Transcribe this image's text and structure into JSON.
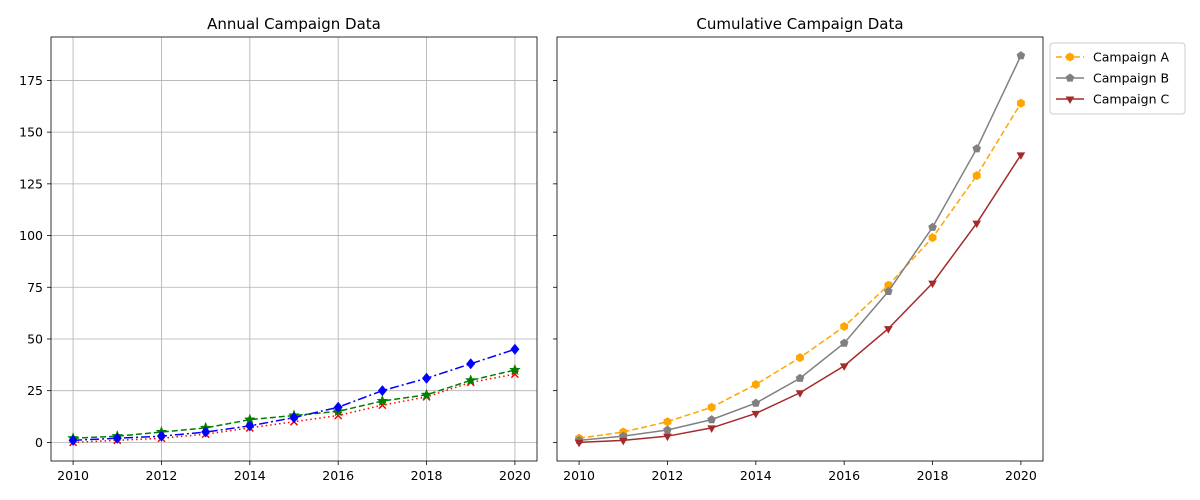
{
  "chart_data": [
    {
      "type": "line",
      "title": "Annual Campaign Data",
      "xlabel": "",
      "ylabel": "",
      "x": [
        2010,
        2011,
        2012,
        2013,
        2014,
        2015,
        2016,
        2017,
        2018,
        2019,
        2020
      ],
      "xlim": [
        2009.5,
        2020.5
      ],
      "ylim": [
        -9,
        196
      ],
      "xticks": [
        2010,
        2012,
        2014,
        2016,
        2018,
        2020
      ],
      "yticks": [
        0,
        25,
        50,
        75,
        100,
        125,
        150,
        175
      ],
      "grid": true,
      "series": [
        {
          "values": [
            0,
            1,
            2,
            4,
            7,
            10,
            13,
            18,
            22,
            29,
            33
          ],
          "color": "#ff0000",
          "linestyle": "dotted",
          "marker": "x"
        },
        {
          "values": [
            2,
            3,
            5,
            7,
            11,
            13,
            15,
            20,
            23,
            30,
            35
          ],
          "color": "#008000",
          "linestyle": "dashed",
          "marker": "star"
        },
        {
          "values": [
            1,
            2,
            3,
            5,
            8,
            12,
            17,
            25,
            31,
            38,
            45
          ],
          "color": "#0000ff",
          "linestyle": "dashdot",
          "marker": "diamond"
        }
      ]
    },
    {
      "type": "line",
      "title": "Cumulative Campaign Data",
      "xlabel": "",
      "ylabel": "",
      "x": [
        2010,
        2011,
        2012,
        2013,
        2014,
        2015,
        2016,
        2017,
        2018,
        2019,
        2020
      ],
      "xlim": [
        2009.5,
        2020.5
      ],
      "ylim": [
        -9,
        196
      ],
      "xticks": [
        2010,
        2012,
        2014,
        2016,
        2018,
        2020
      ],
      "yticks": [
        0,
        25,
        50,
        75,
        100,
        125,
        150,
        175
      ],
      "grid": false,
      "legend": "upper-right-outside",
      "series": [
        {
          "name": "Campaign A",
          "values": [
            2,
            5,
            10,
            17,
            28,
            41,
            56,
            76,
            99,
            129,
            164
          ],
          "color": "#ffa500",
          "linestyle": "dashed",
          "marker": "hexagon"
        },
        {
          "name": "Campaign B",
          "values": [
            1,
            3,
            6,
            11,
            19,
            31,
            48,
            73,
            104,
            142,
            187
          ],
          "color": "#808080",
          "linestyle": "solid",
          "marker": "pentagon"
        },
        {
          "name": "Campaign C",
          "values": [
            0,
            1,
            3,
            7,
            14,
            24,
            37,
            55,
            77,
            106,
            139
          ],
          "color": "#a52a2a",
          "linestyle": "solid",
          "marker": "triangle-down"
        }
      ]
    }
  ]
}
